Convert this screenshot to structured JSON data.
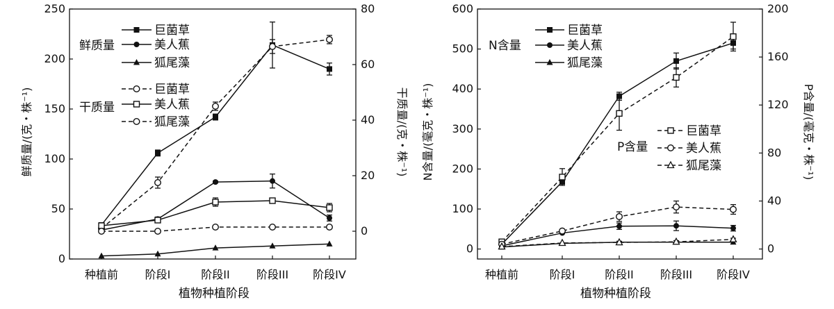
{
  "chart_data": [
    {
      "type": "line",
      "xlabel": "植物种植阶段",
      "ylabel": "鲜质量/(克・株⁻¹)",
      "y2label": "干质量/(克・株⁻¹)",
      "categories": [
        "种植前",
        "阶段I",
        "阶段II",
        "阶段III",
        "阶段IV"
      ],
      "ylim": [
        0,
        250
      ],
      "y2lim": [
        -10,
        80
      ],
      "yticks": [
        0,
        50,
        100,
        150,
        200,
        250
      ],
      "y2ticks": [
        0,
        20,
        40,
        60,
        80
      ],
      "legend_groups": [
        {
          "title": "鲜质量",
          "entries": [
            "巨菌草",
            "美人蕉",
            "狐尾藻"
          ]
        },
        {
          "title": "干质量",
          "entries": [
            "巨菌草",
            "美人蕉",
            "狐尾藻"
          ]
        }
      ],
      "series": [
        {
          "name": "巨菌草",
          "group": "鲜质量",
          "axis": "left",
          "marker": "square",
          "style": "solid",
          "values": [
            34,
            106,
            142,
            214,
            190
          ],
          "errors": [
            2,
            3,
            3,
            23,
            6
          ]
        },
        {
          "name": "美人蕉",
          "group": "鲜质量",
          "axis": "left",
          "marker": "circle",
          "style": "solid",
          "values": [
            29,
            40,
            77,
            78,
            41
          ],
          "errors": [
            2,
            2,
            1,
            7,
            3
          ]
        },
        {
          "name": "狐尾藻",
          "group": "鲜质量",
          "axis": "left",
          "marker": "triangle",
          "style": "solid",
          "values": [
            3,
            5,
            11,
            13,
            15
          ],
          "errors": [
            0,
            0,
            0,
            0,
            0
          ]
        },
        {
          "name": "巨菌草",
          "group": "干质量",
          "axis": "right",
          "marker": "circle-open",
          "style": "dashed",
          "values": [
            1,
            17.5,
            45,
            66.5,
            69
          ],
          "errors": [
            0.5,
            2,
            1.5,
            2.5,
            1.5
          ]
        },
        {
          "name": "美人蕉",
          "group": "干质量",
          "axis": "right",
          "marker": "square-open",
          "style": "solid",
          "values": [
            2,
            4,
            10.5,
            11,
            8.5
          ],
          "errors": [
            0.5,
            0.5,
            1.5,
            0.5,
            1.5
          ]
        },
        {
          "name": "狐尾藻",
          "group": "干质量",
          "axis": "right",
          "marker": "circle-open",
          "style": "dashed",
          "values": [
            0,
            0,
            1.5,
            1.5,
            1.5
          ],
          "errors": [
            0,
            0,
            0,
            0,
            0
          ]
        }
      ]
    },
    {
      "type": "line",
      "xlabel": "植物种植阶段",
      "ylabel": "N含量/(毫克・株⁻¹)",
      "y2label": "P含量/(毫克・株⁻¹)",
      "categories": [
        "种植前",
        "阶段I",
        "阶段II",
        "阶段III",
        "阶段IV"
      ],
      "ylim": [
        -25,
        600
      ],
      "y2lim": [
        -8.33,
        200
      ],
      "yticks": [
        0,
        100,
        200,
        300,
        400,
        500,
        600
      ],
      "y2ticks": [
        0,
        40,
        80,
        120,
        160,
        200
      ],
      "legend_groups": [
        {
          "title": "N含量",
          "entries": [
            "巨菌草",
            "美人蕉",
            "狐尾藻"
          ]
        },
        {
          "title": "P含量",
          "entries": [
            "巨菌草",
            "美人蕉",
            "狐尾藻"
          ]
        }
      ],
      "series": [
        {
          "name": "巨菌草",
          "group": "N含量",
          "axis": "left",
          "marker": "square",
          "style": "solid",
          "values": [
            12,
            168,
            382,
            470,
            515
          ],
          "errors": [
            2,
            6,
            10,
            20,
            15
          ]
        },
        {
          "name": "美人蕉",
          "group": "N含量",
          "axis": "left",
          "marker": "circle",
          "style": "solid",
          "values": [
            8,
            40,
            57,
            58,
            52
          ],
          "errors": [
            2,
            2,
            8,
            12,
            7
          ]
        },
        {
          "name": "狐尾藻",
          "group": "N含量",
          "axis": "left",
          "marker": "triangle",
          "style": "solid",
          "values": [
            5,
            14,
            17,
            17,
            17
          ],
          "errors": [
            0,
            0,
            0,
            0,
            0
          ]
        },
        {
          "name": "巨菌草",
          "group": "P含量",
          "axis": "right",
          "marker": "square-open",
          "style": "dashed",
          "values": [
            6,
            60,
            113,
            143,
            177
          ],
          "errors": [
            2,
            7,
            14,
            8,
            12
          ]
        },
        {
          "name": "美人蕉",
          "group": "P含量",
          "axis": "right",
          "marker": "circle-open",
          "style": "dashed",
          "values": [
            4,
            15,
            27,
            35,
            33
          ],
          "errors": [
            1,
            1,
            4,
            5,
            4
          ]
        },
        {
          "name": "狐尾藻",
          "group": "P含量",
          "axis": "right",
          "marker": "triangle-open",
          "style": "dashed",
          "values": [
            2,
            5,
            5.5,
            6,
            8
          ],
          "errors": [
            0,
            0,
            1,
            1,
            1
          ]
        }
      ]
    }
  ]
}
